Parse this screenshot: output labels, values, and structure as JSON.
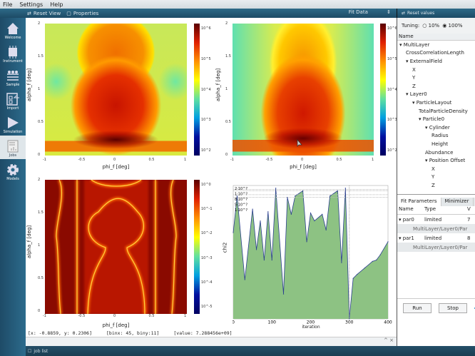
{
  "menu": [
    "File",
    "Settings",
    "Help"
  ],
  "toolbar": {
    "reset_view": "Reset View",
    "properties": "Properties",
    "fit_select": "Fit Data",
    "reset_values": "Reset values"
  },
  "sidebar": [
    {
      "label": "Welcome",
      "icon": "home-icon"
    },
    {
      "label": "Instrument",
      "icon": "chip-icon"
    },
    {
      "label": "Sample",
      "icon": "layers-icon"
    },
    {
      "label": "Import",
      "icon": "import-icon"
    },
    {
      "label": "Simulation",
      "icon": "play-icon"
    },
    {
      "label": "Jobs",
      "icon": "jobs-icon"
    },
    {
      "label": "Models",
      "icon": "gear-icon"
    }
  ],
  "plots": {
    "xlabel": "phi_f [deg]",
    "ylabel": "alpha_f [deg]",
    "xticks": [
      "-1",
      "-0.5",
      "0",
      "0.5",
      "1"
    ],
    "yticks": [
      "2",
      "1.5",
      "1",
      "0.5",
      "0"
    ],
    "cbar_top_left": [
      "10^6",
      "10^5",
      "10^4",
      "10^3",
      "10^2"
    ],
    "cbar_top_right": [
      "10^6",
      "10^5",
      "10^4",
      "10^3",
      "10^2"
    ],
    "cbar_bottom_left": [
      "10^0",
      "10^-1",
      "10^-2",
      "10^-3",
      "10^-4",
      "10^-5"
    ],
    "cbar_bottom_left_label": "chi2"
  },
  "chart_data": {
    "type": "area",
    "title": "",
    "xlabel": "iteration",
    "ylabel": "chi2",
    "xlim": [
      0,
      400
    ],
    "ylog": true,
    "xticks": [
      "0",
      "100",
      "200",
      "300",
      "400"
    ],
    "yticks": [
      "2·10^?",
      "1·10^?",
      "8·10^?",
      "5·10^?",
      "1·10^?"
    ],
    "x": [
      0,
      10,
      30,
      50,
      60,
      70,
      80,
      90,
      100,
      110,
      130,
      140,
      150,
      160,
      180,
      190,
      200,
      210,
      230,
      240,
      250,
      270,
      280,
      290,
      300,
      310,
      320,
      340,
      360,
      370,
      380,
      400
    ],
    "values_normalized_log": [
      0.66,
      0.94,
      0.3,
      0.84,
      0.53,
      0.75,
      0.45,
      0.82,
      0.45,
      1.0,
      0.19,
      0.93,
      0.8,
      0.94,
      0.98,
      0.59,
      0.81,
      0.75,
      0.8,
      0.68,
      0.94,
      0.98,
      0.43,
      1.0,
      0.0,
      0.31,
      0.34,
      0.39,
      0.44,
      0.45,
      0.49,
      0.59
    ],
    "marker_x": 300
  },
  "status": {
    "xy": "[x: -0.8859, y: 0.2306]",
    "bin": "[binx: 45, biny:11]",
    "value": "[value: 7.288456e+09]"
  },
  "dock_controls": "^ ×",
  "job_list": "job list",
  "right": {
    "tuning_label": "Tuning:",
    "tuning_options": [
      "10%",
      "100%"
    ],
    "tree_header": "Name",
    "tree": [
      [
        0,
        "▾ MultiLayer"
      ],
      [
        1,
        "CrossCorrelationLength"
      ],
      [
        1,
        "▾ ExternalField"
      ],
      [
        2,
        "X"
      ],
      [
        2,
        "Y"
      ],
      [
        2,
        "Z"
      ],
      [
        1,
        "▾ Layer0"
      ],
      [
        2,
        "▾ ParticleLayout"
      ],
      [
        3,
        "TotalParticleDensity"
      ],
      [
        3,
        "▾ Particle0"
      ],
      [
        4,
        "▾ Cylinder"
      ],
      [
        5,
        "Radius"
      ],
      [
        5,
        "Height"
      ],
      [
        4,
        "Abundance"
      ],
      [
        4,
        "▾ Position Offset"
      ],
      [
        5,
        "X"
      ],
      [
        5,
        "Y"
      ],
      [
        5,
        "Z"
      ]
    ],
    "tabs": [
      "Fit Parameters",
      "Minimizer"
    ],
    "param_headers": [
      "Name",
      "Type",
      "V"
    ],
    "params": [
      {
        "name": "▾ par0",
        "type": "limited",
        "value": "7",
        "path": "MultiLayer/Layer0/Par"
      },
      {
        "name": "▾ par1",
        "type": "limited",
        "value": "8",
        "path": "MultiLayer/Layer0/Par"
      }
    ],
    "run": "Run",
    "stop": "Stop"
  },
  "colors": {
    "accent": "#1d4b66",
    "area": "#8dc283",
    "line": "#2b3f8f"
  }
}
